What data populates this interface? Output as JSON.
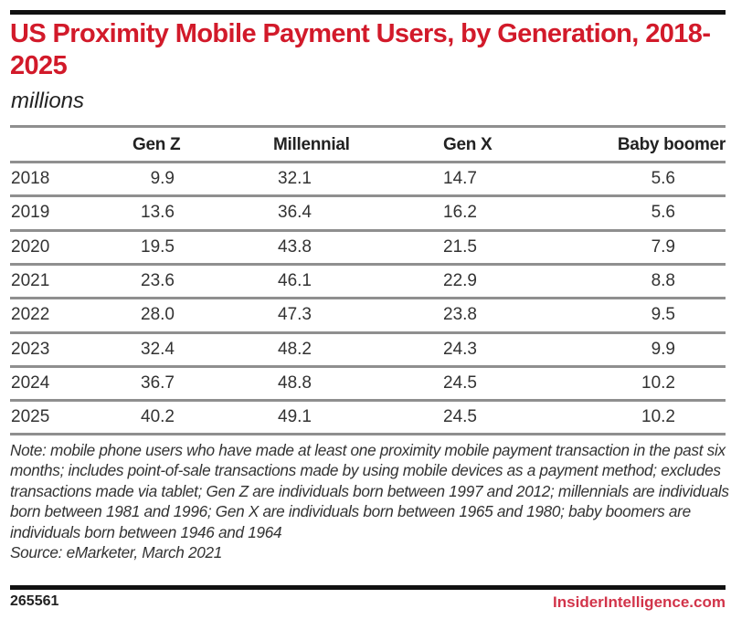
{
  "header": {
    "title": "US Proximity Mobile Payment Users, by Generation, 2018-2025",
    "subtitle": "millions"
  },
  "table": {
    "columns": [
      "",
      "Gen Z",
      "Millennial",
      "Gen X",
      "Baby boomer"
    ],
    "rows": [
      [
        "2018",
        "9.9",
        "32.1",
        "14.7",
        "5.6"
      ],
      [
        "2019",
        "13.6",
        "36.4",
        "16.2",
        "5.6"
      ],
      [
        "2020",
        "19.5",
        "43.8",
        "21.5",
        "7.9"
      ],
      [
        "2021",
        "23.6",
        "46.1",
        "22.9",
        "8.8"
      ],
      [
        "2022",
        "28.0",
        "47.3",
        "23.8",
        "9.5"
      ],
      [
        "2023",
        "32.4",
        "48.2",
        "24.3",
        "9.9"
      ],
      [
        "2024",
        "36.7",
        "48.8",
        "24.5",
        "10.2"
      ],
      [
        "2025",
        "40.2",
        "49.1",
        "24.5",
        "10.2"
      ]
    ]
  },
  "footer": {
    "note": "Note: mobile phone users who have made at least one proximity mobile payment transaction in the past six months; includes point-of-sale transactions made by using mobile devices as a payment method; excludes transactions made via tablet; Gen Z are individuals born between 1997 and 2012; millennials are individuals born between 1981 and 1996; Gen X are individuals born between 1965 and 1980; baby boomers are individuals born between 1946 and 1964",
    "source": "Source: eMarketer, March 2021",
    "chart_id": "265561",
    "brand": "InsiderIntelligence.com"
  },
  "colors": {
    "title": "#d21a2a",
    "brand": "#d2344a",
    "rule": "#8f8f8f",
    "bar": "#111111"
  },
  "chart_data": {
    "type": "table",
    "title": "US Proximity Mobile Payment Users, by Generation, 2018-2025",
    "subtitle": "millions",
    "categories": [
      "2018",
      "2019",
      "2020",
      "2021",
      "2022",
      "2023",
      "2024",
      "2025"
    ],
    "series": [
      {
        "name": "Gen Z",
        "values": [
          9.9,
          13.6,
          19.5,
          23.6,
          28.0,
          32.4,
          36.7,
          40.2
        ]
      },
      {
        "name": "Millennial",
        "values": [
          32.1,
          36.4,
          43.8,
          46.1,
          47.3,
          48.2,
          48.8,
          49.1
        ]
      },
      {
        "name": "Gen X",
        "values": [
          14.7,
          16.2,
          21.5,
          22.9,
          23.8,
          24.3,
          24.5,
          24.5
        ]
      },
      {
        "name": "Baby boomer",
        "values": [
          5.6,
          5.6,
          7.9,
          8.8,
          9.5,
          9.9,
          10.2,
          10.2
        ]
      }
    ],
    "unit": "millions",
    "source": "Source: eMarketer, March 2021"
  }
}
